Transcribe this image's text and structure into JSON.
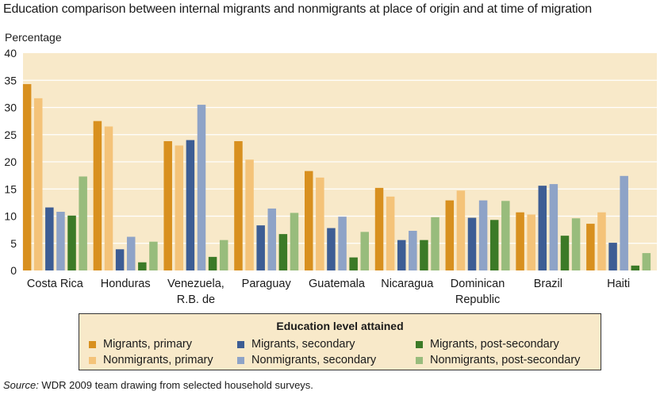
{
  "title": "Education comparison between internal migrants and nonmigrants at place of origin and at time of migration",
  "source_label": "Source:",
  "source_text": " WDR 2009 team drawing from selected household surveys.",
  "colors": {
    "plot_bg": "#f8e9c9",
    "grid": "#ffffff"
  },
  "chart_data": {
    "type": "bar",
    "title": "Education comparison between internal migrants and nonmigrants at place of origin and at time of migration",
    "ylabel": "Percentage",
    "xlabel": "",
    "ylim": [
      0,
      40
    ],
    "yticks": [
      0,
      5,
      10,
      15,
      20,
      25,
      30,
      35,
      40
    ],
    "grid": true,
    "legend_title": "Education level attained",
    "legend_position": "bottom",
    "categories": [
      [
        "Costa Rica"
      ],
      [
        "Honduras"
      ],
      [
        "Venezuela,",
        "R.B. de"
      ],
      [
        "Paraguay"
      ],
      [
        "Guatemala"
      ],
      [
        "Nicaragua"
      ],
      [
        "Dominican",
        "Republic"
      ],
      [
        "Brazil"
      ],
      [
        "Haiti"
      ]
    ],
    "series": [
      {
        "name": "Migrants, primary",
        "color": "#d8901f",
        "values": [
          34.3,
          27.5,
          23.8,
          23.8,
          18.3,
          15.2,
          12.9,
          10.7,
          8.6
        ]
      },
      {
        "name": "Nonmigrants, primary",
        "color": "#f4c379",
        "values": [
          31.7,
          26.5,
          23.0,
          20.4,
          17.1,
          13.6,
          14.7,
          10.3,
          10.7
        ]
      },
      {
        "name": "Migrants, secondary",
        "color": "#3d5d94",
        "values": [
          11.6,
          3.9,
          24.0,
          8.3,
          7.8,
          5.6,
          9.7,
          15.6,
          5.1
        ]
      },
      {
        "name": "Nonmigrants, secondary",
        "color": "#8ea3c7",
        "values": [
          10.8,
          6.2,
          30.5,
          11.4,
          9.9,
          7.3,
          12.9,
          15.9,
          17.4
        ]
      },
      {
        "name": "Migrants, post-secondary",
        "color": "#3c7a27",
        "values": [
          10.1,
          1.5,
          2.5,
          6.7,
          2.4,
          5.6,
          9.3,
          6.4,
          0.9
        ]
      },
      {
        "name": "Nonmigrants, post-secondary",
        "color": "#98bc7c",
        "values": [
          17.3,
          5.3,
          5.6,
          10.6,
          7.1,
          9.8,
          12.8,
          9.6,
          3.2
        ]
      }
    ]
  }
}
